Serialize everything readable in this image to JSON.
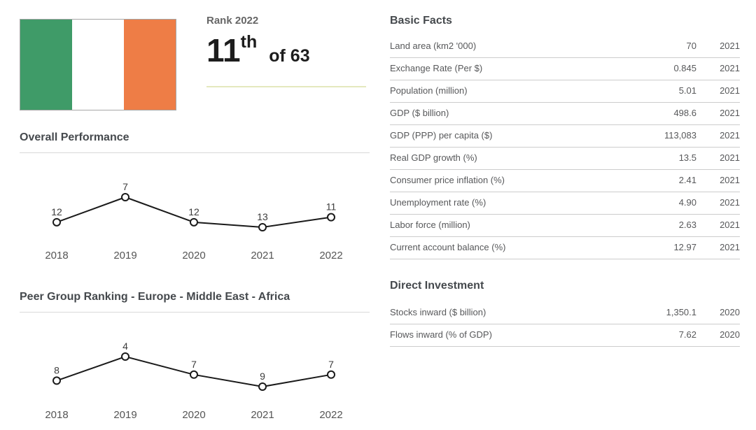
{
  "colors": {
    "flag_green": "#3f9b68",
    "flag_orange": "#ee7d46",
    "rank_underline": "#e4e8be",
    "divider": "#d9d9d9",
    "row_border": "#cccccc",
    "heading_text": "#45494d",
    "body_text": "#57585a",
    "chart_line": "#1a1a1a"
  },
  "flag": {
    "icon": "ireland-flag-icon",
    "stripe_colors": [
      "#3f9b68",
      "#ffffff",
      "#ee7d46"
    ]
  },
  "rank": {
    "title": "Rank 2022",
    "value": "11",
    "ordinal_suffix": "th",
    "of_text": "of 63"
  },
  "chart_data": [
    {
      "type": "line",
      "title": "Overall Performance",
      "categories": [
        "2018",
        "2019",
        "2020",
        "2021",
        "2022"
      ],
      "values": [
        12,
        7,
        12,
        13,
        11
      ],
      "ylabel": "rank (lower is better, axis inverted)",
      "y_inverted": true,
      "markers": "open-circle",
      "data_labels": true,
      "grid": false,
      "legend": "none"
    },
    {
      "type": "line",
      "title": "Peer Group Ranking - Europe - Middle East - Africa",
      "categories": [
        "2018",
        "2019",
        "2020",
        "2021",
        "2022"
      ],
      "values": [
        8,
        4,
        7,
        9,
        7
      ],
      "ylabel": "rank (lower is better, axis inverted)",
      "y_inverted": true,
      "markers": "open-circle",
      "data_labels": true,
      "grid": false,
      "legend": "none"
    }
  ],
  "basic_facts": {
    "title": "Basic Facts",
    "rows": [
      {
        "label": "Land area (km2 '000)",
        "value": "70",
        "year": "2021"
      },
      {
        "label": "Exchange Rate (Per $)",
        "value": "0.845",
        "year": "2021"
      },
      {
        "label": "Population (million)",
        "value": "5.01",
        "year": "2021"
      },
      {
        "label": "GDP ($ billion)",
        "value": "498.6",
        "year": "2021"
      },
      {
        "label": "GDP (PPP) per capita ($)",
        "value": "113,083",
        "year": "2021"
      },
      {
        "label": "Real GDP growth (%)",
        "value": "13.5",
        "year": "2021"
      },
      {
        "label": "Consumer price inflation (%)",
        "value": "2.41",
        "year": "2021"
      },
      {
        "label": "Unemployment rate (%)",
        "value": "4.90",
        "year": "2021"
      },
      {
        "label": "Labor force (million)",
        "value": "2.63",
        "year": "2021"
      },
      {
        "label": "Current account balance (%)",
        "value": "12.97",
        "year": "2021"
      }
    ]
  },
  "direct_investment": {
    "title": "Direct Investment",
    "rows": [
      {
        "label": "Stocks inward ($ billion)",
        "value": "1,350.1",
        "year": "2020"
      },
      {
        "label": "Flows inward (% of GDP)",
        "value": "7.62",
        "year": "2020"
      }
    ]
  }
}
